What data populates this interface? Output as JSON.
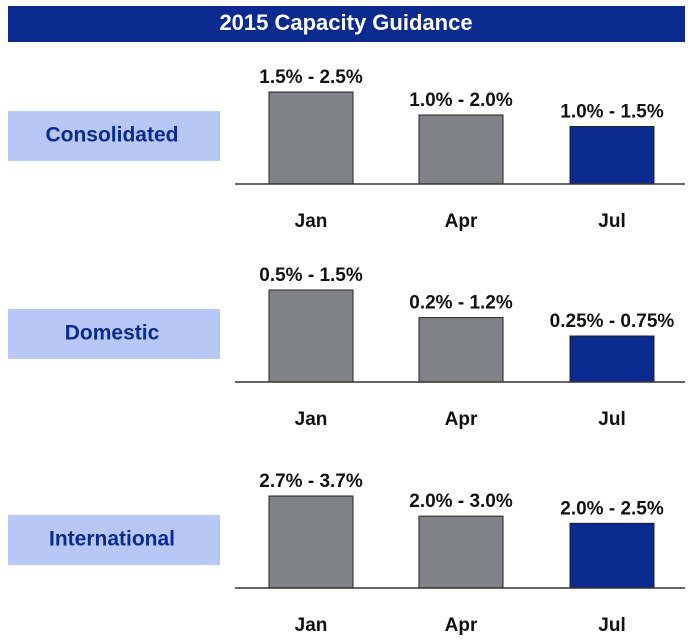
{
  "header": {
    "title": "2015 Capacity Guidance"
  },
  "chart_data": [
    {
      "type": "bar",
      "title": "Consolidated",
      "categories": [
        "Jan",
        "Apr",
        "Jul"
      ],
      "values": [
        2.0,
        1.5,
        1.25
      ],
      "value_labels": [
        "1.5% - 2.5%",
        "1.0% - 2.0%",
        "1.0% - 1.5%"
      ],
      "colors": [
        "#808285",
        "#808285",
        "#0a2a8f"
      ],
      "ylim": [
        0,
        2.0
      ]
    },
    {
      "type": "bar",
      "title": "Domestic",
      "categories": [
        "Jan",
        "Apr",
        "Jul"
      ],
      "values": [
        1.0,
        0.7,
        0.5
      ],
      "value_labels": [
        "0.5% - 1.5%",
        "0.2% - 1.2%",
        "0.25% - 0.75%"
      ],
      "colors": [
        "#808285",
        "#808285",
        "#0a2a8f"
      ],
      "ylim": [
        0,
        1.0
      ]
    },
    {
      "type": "bar",
      "title": "International",
      "categories": [
        "Jan",
        "Apr",
        "Jul"
      ],
      "values": [
        3.2,
        2.5,
        2.25
      ],
      "value_labels": [
        "2.7% - 3.7%",
        "2.0% - 3.0%",
        "2.0% - 2.5%"
      ],
      "colors": [
        "#808285",
        "#808285",
        "#0a2a8f"
      ],
      "ylim": [
        0,
        3.2
      ]
    }
  ]
}
